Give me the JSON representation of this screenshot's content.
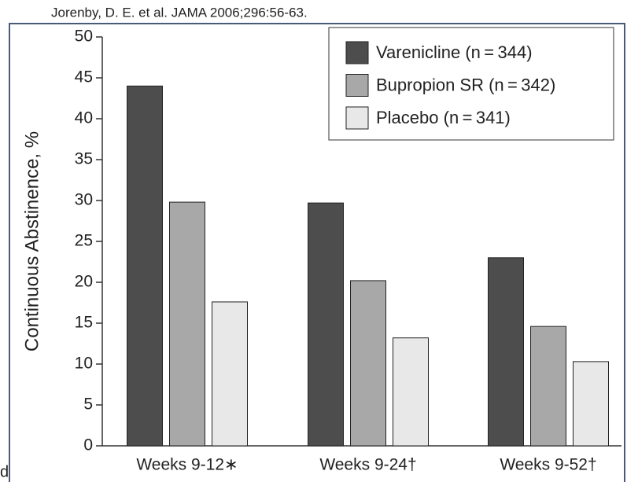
{
  "citation": "Jorenby, D. E. et al. JAMA 2006;296:56-63.",
  "fragment": "d",
  "chart_data": {
    "type": "bar",
    "ylabel": "Continuous Abstinence, %",
    "categories": [
      "Weeks 9-12∗",
      "Weeks 9-24†",
      "Weeks 9-52†"
    ],
    "series": [
      {
        "name": "Varenicline (n = 344)",
        "color": "#4d4d4d",
        "values": [
          44,
          29.7,
          23
        ]
      },
      {
        "name": "Bupropion SR (n = 342)",
        "color": "#a8a8a8",
        "values": [
          29.8,
          20.2,
          14.6
        ]
      },
      {
        "name": "Placebo (n = 341)",
        "color": "#e8e8e8",
        "values": [
          17.6,
          13.2,
          10.3
        ]
      }
    ],
    "ylim": [
      0,
      50
    ],
    "yticks": [
      0,
      5,
      10,
      15,
      20,
      25,
      30,
      35,
      40,
      45,
      50
    ],
    "legend": "top-right"
  }
}
